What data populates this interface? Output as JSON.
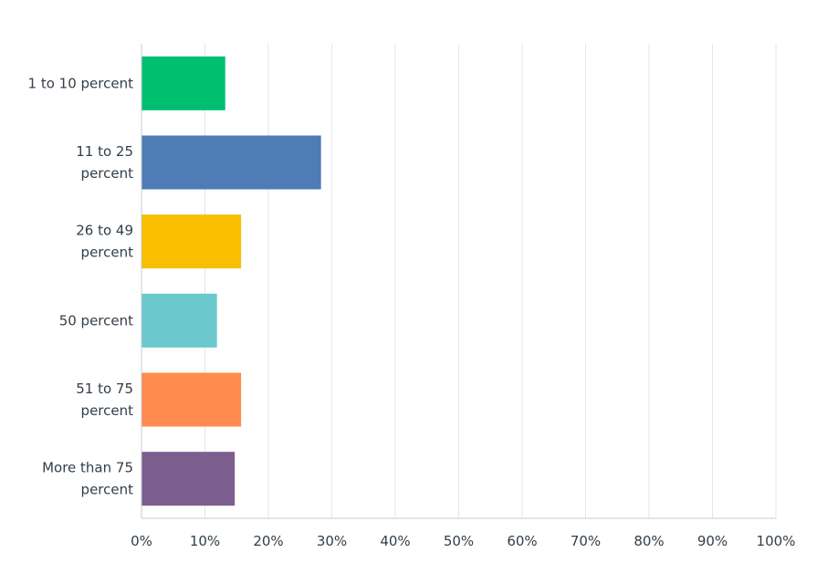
{
  "chart_data": {
    "type": "bar",
    "orientation": "horizontal",
    "categories": [
      [
        "1 to 10 percent"
      ],
      [
        "11 to 25",
        "percent"
      ],
      [
        "26 to 49",
        "percent"
      ],
      [
        "50 percent"
      ],
      [
        "51 to 75",
        "percent"
      ],
      [
        "More than 75",
        "percent"
      ]
    ],
    "values": [
      13.2,
      28.3,
      15.7,
      11.9,
      15.7,
      14.7
    ],
    "colors": [
      "#00bf6f",
      "#507cb6",
      "#f9be00",
      "#6bc8cd",
      "#ff8b4f",
      "#7d5e90"
    ],
    "xlim": [
      0,
      100
    ],
    "xticks": [
      0,
      10,
      20,
      30,
      40,
      50,
      60,
      70,
      80,
      90,
      100
    ],
    "tick_format": "{v}%",
    "grid": "vertical",
    "legend": "none"
  }
}
